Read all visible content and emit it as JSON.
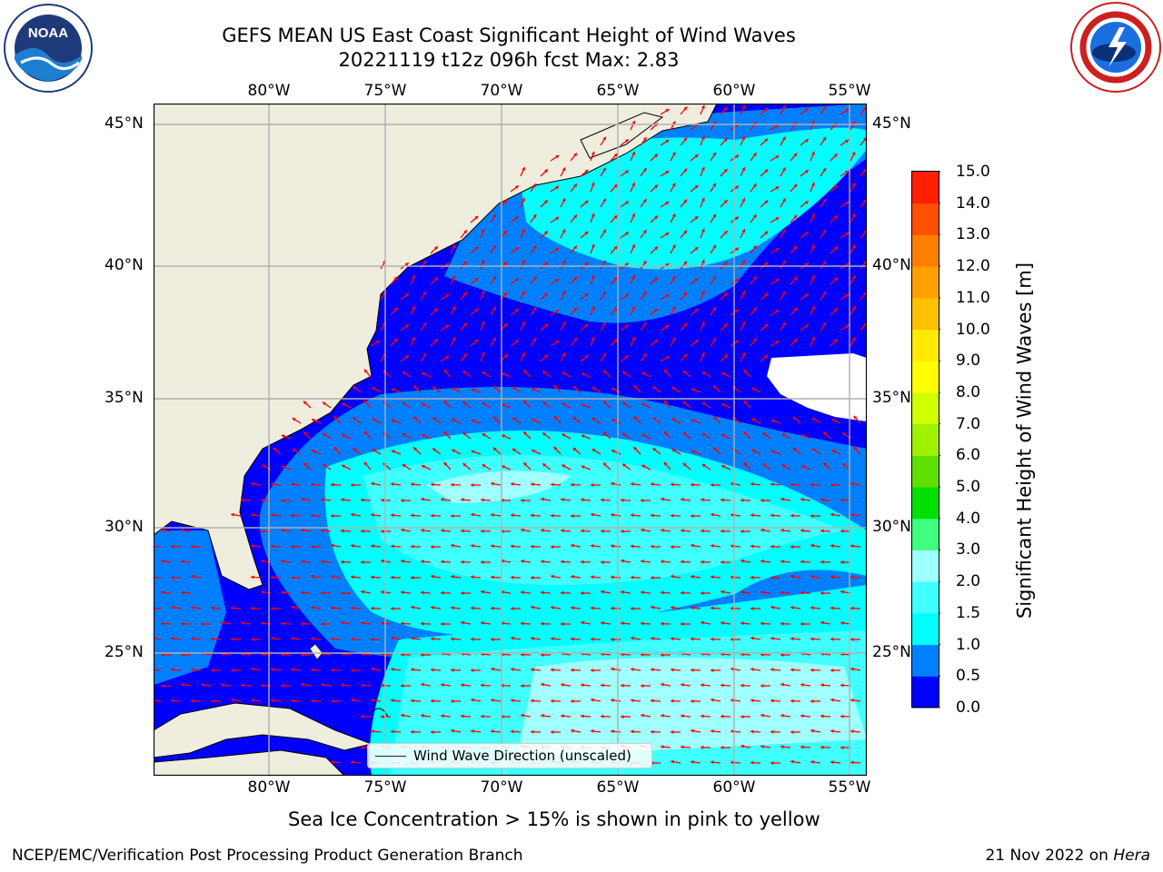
{
  "title_line1": "GEFS MEAN US East Coast Significant Height of Wind Waves",
  "title_line2": "20221119 t12z 096h fcst   Max: 2.83",
  "lon_labels": [
    "80°W",
    "75°W",
    "70°W",
    "65°W",
    "60°W",
    "55°W"
  ],
  "lat_labels": [
    "45°N",
    "40°N",
    "35°N",
    "30°N",
    "25°N"
  ],
  "colorbar": {
    "label": "Significant Height of Wind Waves [m]",
    "ticks": [
      "0.0",
      "0.5",
      "1.0",
      "1.5",
      "2.0",
      "3.0",
      "4.0",
      "5.0",
      "6.0",
      "7.0",
      "8.0",
      "9.0",
      "10.0",
      "11.0",
      "12.0",
      "13.0",
      "14.0",
      "15.0"
    ],
    "colors": [
      "#0000ff",
      "#0080ff",
      "#00ffff",
      "#40ffff",
      "#a0ffff",
      "#40ff80",
      "#00e000",
      "#60e000",
      "#a0f000",
      "#d0ff00",
      "#ffff00",
      "#ffea00",
      "#ffc000",
      "#ffa000",
      "#ff8000",
      "#ff5000",
      "#ff2000",
      "#ff0000"
    ]
  },
  "legend_label": "Wind Wave Direction (unscaled)",
  "sea_ice_note": "Sea Ice Concentration > 15% is shown in pink to yellow",
  "footer_left": "NCEP/EMC/Verification Post Processing Product Generation Branch",
  "footer_right_date": "21 Nov 2022 on ",
  "footer_right_host": "Hera",
  "logos": {
    "left": "noaa-logo",
    "left_text": "NOAA",
    "right": "national-weather-service-logo"
  },
  "map_colors": {
    "land": "#efedde",
    "arrow": "#ff0000",
    "grid": "#b0b0b0",
    "missing": "#ffffff"
  }
}
